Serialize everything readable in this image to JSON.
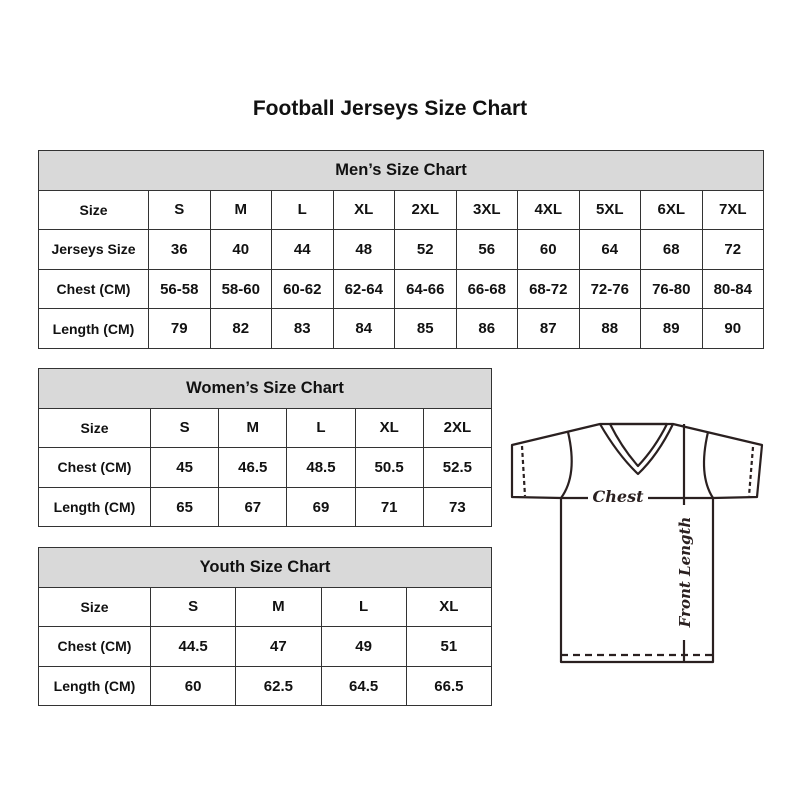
{
  "title": "Football Jerseys Size Chart",
  "men": {
    "caption": "Men’s Size Chart",
    "rows": [
      {
        "label": "Size",
        "values": [
          "S",
          "M",
          "L",
          "XL",
          "2XL",
          "3XL",
          "4XL",
          "5XL",
          "6XL",
          "7XL"
        ]
      },
      {
        "label": "Jerseys Size",
        "values": [
          "36",
          "40",
          "44",
          "48",
          "52",
          "56",
          "60",
          "64",
          "68",
          "72"
        ]
      },
      {
        "label": "Chest (CM)",
        "values": [
          "56-58",
          "58-60",
          "60-62",
          "62-64",
          "64-66",
          "66-68",
          "68-72",
          "72-76",
          "76-80",
          "80-84"
        ]
      },
      {
        "label": "Length (CM)",
        "values": [
          "79",
          "82",
          "83",
          "84",
          "85",
          "86",
          "87",
          "88",
          "89",
          "90"
        ]
      }
    ]
  },
  "women": {
    "caption": "Women’s Size Chart",
    "rows": [
      {
        "label": "Size",
        "values": [
          "S",
          "M",
          "L",
          "XL",
          "2XL"
        ]
      },
      {
        "label": "Chest (CM)",
        "values": [
          "45",
          "46.5",
          "48.5",
          "50.5",
          "52.5"
        ]
      },
      {
        "label": "Length (CM)",
        "values": [
          "65",
          "67",
          "69",
          "71",
          "73"
        ]
      }
    ]
  },
  "youth": {
    "caption": "Youth Size Chart",
    "rows": [
      {
        "label": "Size",
        "values": [
          "S",
          "M",
          "L",
          "XL"
        ]
      },
      {
        "label": "Chest (CM)",
        "values": [
          "44.5",
          "47",
          "49",
          "51"
        ]
      },
      {
        "label": "Length (CM)",
        "values": [
          "60",
          "62.5",
          "64.5",
          "66.5"
        ]
      }
    ]
  },
  "diagram": {
    "chest_label": "Chest",
    "length_label": "Front Length"
  }
}
